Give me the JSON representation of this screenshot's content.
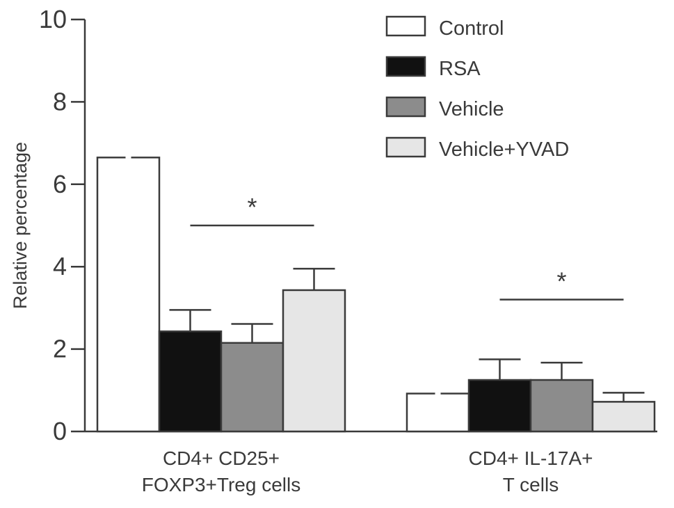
{
  "chart_data": {
    "type": "bar",
    "title": "",
    "xlabel": "",
    "ylabel": "Relative percentage",
    "ylim": [
      0,
      10
    ],
    "yticks": [
      "0",
      "2",
      "4",
      "6",
      "8",
      "10"
    ],
    "grid": false,
    "legend_position": "top-right",
    "categories": [
      [
        "CD4+ CD25+",
        "FOXP3+Treg cells"
      ],
      [
        "CD4+ IL-17A+",
        "T cells"
      ]
    ],
    "series": [
      {
        "name": "Control",
        "color": "#ffffff",
        "values": [
          6.65,
          0.92
        ],
        "errors": [
          0,
          0
        ]
      },
      {
        "name": "RSA",
        "color": "#111111",
        "values": [
          2.43,
          1.25
        ],
        "errors": [
          0.52,
          0.5
        ]
      },
      {
        "name": "Vehicle",
        "color": "#8c8c8c",
        "values": [
          2.15,
          1.25
        ],
        "errors": [
          0.46,
          0.42
        ]
      },
      {
        "name": "Vehicle+YVAD",
        "color": "#e6e6e6",
        "values": [
          3.43,
          0.72
        ],
        "errors": [
          0.52,
          0.22
        ]
      }
    ],
    "annotations": [
      {
        "text": "*",
        "group": 0,
        "from_series": 1,
        "to_series": 3,
        "y": 5.0
      },
      {
        "text": "*",
        "group": 1,
        "from_series": 1,
        "to_series": 3,
        "y": 3.2
      }
    ]
  }
}
